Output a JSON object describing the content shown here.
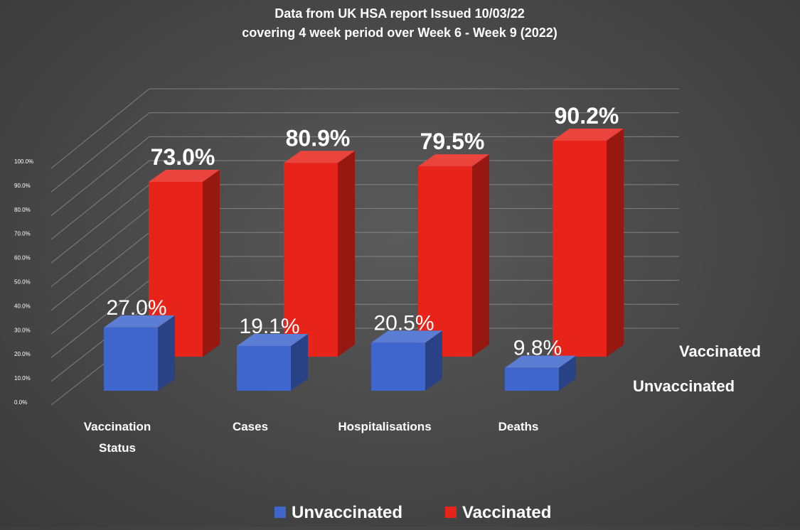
{
  "chart_data": {
    "type": "bar",
    "title": [
      "Data from UK HSA report Issued 10/03/22",
      "covering 4 week period over Week 6 - Week 9 (2022)"
    ],
    "categories": [
      [
        "Vaccination",
        "Status"
      ],
      [
        "Cases"
      ],
      [
        "Hospitalisations"
      ],
      [
        "Deaths"
      ]
    ],
    "series": [
      {
        "name": "Unvaccinated",
        "values": [
          27.0,
          19.1,
          20.5,
          9.8
        ],
        "labels": [
          "27.0%",
          "19.1%",
          "20.5%",
          "9.8%"
        ],
        "color": "#3f66cc"
      },
      {
        "name": "Vaccinated",
        "values": [
          73.0,
          80.9,
          79.5,
          90.2
        ],
        "labels": [
          "73.0%",
          "80.9%",
          "79.5%",
          "90.2%"
        ],
        "color": "#e8231a"
      }
    ],
    "yticks": [
      "0.0%",
      "10.0%",
      "20.0%",
      "30.0%",
      "40.0%",
      "50.0%",
      "60.0%",
      "70.0%",
      "80.0%",
      "90.0%",
      "100.0%"
    ],
    "ylim": [
      0,
      100
    ],
    "depth_labels": [
      "Vaccinated",
      "Unvaccinated"
    ],
    "legend": {
      "position": "bottom",
      "items": [
        "Unvaccinated",
        "Vaccinated"
      ]
    },
    "grid": true,
    "colors": {
      "background": "#474747",
      "text": "#ffffff",
      "grid": "#8a8a8a"
    }
  }
}
